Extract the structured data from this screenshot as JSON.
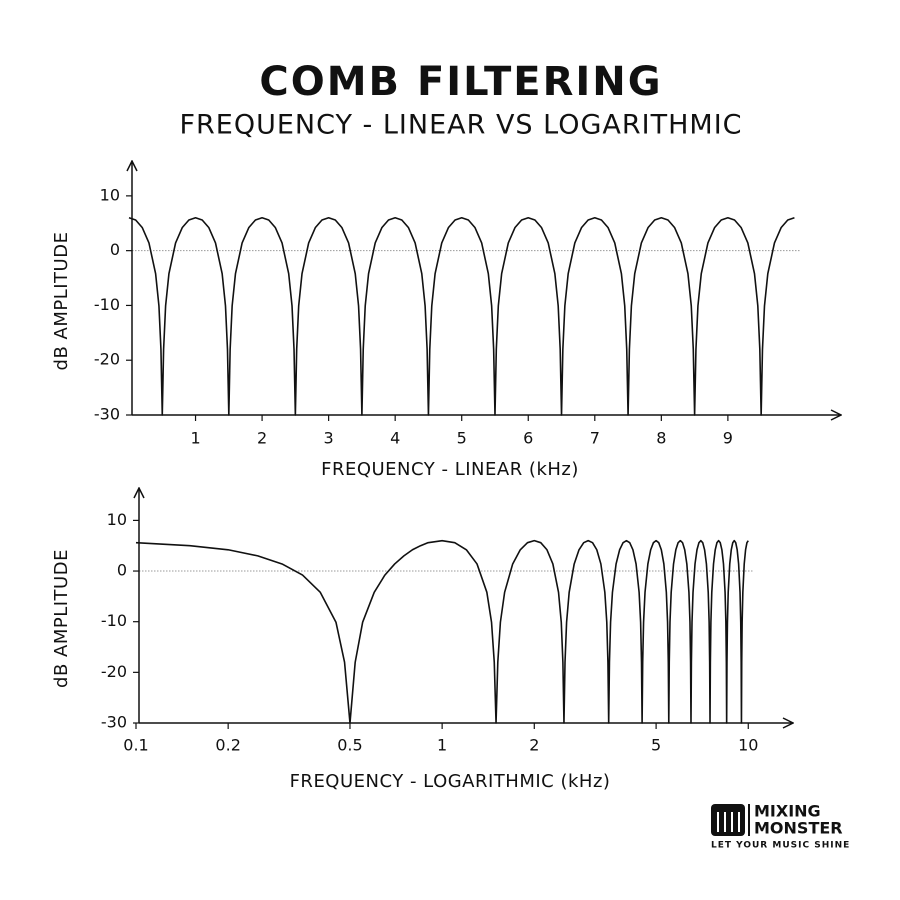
{
  "title": "COMB FILTERING",
  "subtitle": "FREQUENCY - LINEAR VS LOGARITHMIC",
  "chart_data": [
    {
      "type": "line",
      "ylabel": "dB AMPLITUDE",
      "xlabel": "FREQUENCY - LINEAR (kHz)",
      "color": "#111111",
      "xlim": [
        0,
        10.7
      ],
      "xticks": [
        1,
        2,
        3,
        4,
        5,
        6,
        7,
        8,
        9
      ],
      "ylim": [
        -30,
        16
      ],
      "yticks": [
        -30,
        -20,
        -10,
        0,
        10
      ],
      "hline": 0,
      "x": [
        0,
        0.1,
        0.2,
        0.3,
        0.4,
        0.45,
        0.48,
        0.5,
        0.52,
        0.55,
        0.6,
        0.7,
        0.8,
        0.9,
        1,
        1.1,
        1.2,
        1.3,
        1.4,
        1.45,
        1.48,
        1.5,
        1.52,
        1.55,
        1.6,
        1.7,
        1.8,
        1.9,
        2,
        2.1,
        2.2,
        2.3,
        2.4,
        2.45,
        2.48,
        2.5,
        2.52,
        2.55,
        2.6,
        2.7,
        2.8,
        2.9,
        3,
        3.1,
        3.2,
        3.3,
        3.4,
        3.45,
        3.48,
        3.5,
        3.52,
        3.55,
        3.6,
        3.7,
        3.8,
        3.9,
        4,
        4.1,
        4.2,
        4.3,
        4.4,
        4.45,
        4.48,
        4.5,
        4.52,
        4.55,
        4.6,
        4.7,
        4.8,
        4.9,
        5,
        5.1,
        5.2,
        5.3,
        5.4,
        5.45,
        5.48,
        5.5,
        5.52,
        5.55,
        5.6,
        5.7,
        5.8,
        5.9,
        6,
        6.1,
        6.2,
        6.3,
        6.4,
        6.45,
        6.48,
        6.5,
        6.52,
        6.55,
        6.6,
        6.7,
        6.8,
        6.9,
        7,
        7.1,
        7.2,
        7.3,
        7.4,
        7.45,
        7.48,
        7.5,
        7.52,
        7.55,
        7.6,
        7.7,
        7.8,
        7.9,
        8,
        8.1,
        8.2,
        8.3,
        8.4,
        8.45,
        8.48,
        8.5,
        8.52,
        8.55,
        8.6,
        8.7,
        8.8,
        8.9,
        9,
        9.1,
        9.2,
        9.3,
        9.4,
        9.45,
        9.48,
        9.5,
        9.52,
        9.55,
        9.6,
        9.7,
        9.8,
        9.9,
        10
      ],
      "values": [
        6,
        5.6,
        4.2,
        1.4,
        -4.2,
        -10.1,
        -18,
        -30,
        -18,
        -10.1,
        -4.2,
        1.4,
        4.2,
        5.6,
        6,
        5.6,
        4.2,
        1.4,
        -4.2,
        -10.1,
        -18,
        -30,
        -18,
        -10.1,
        -4.2,
        1.4,
        4.2,
        5.6,
        6,
        5.6,
        4.2,
        1.4,
        -4.2,
        -10.1,
        -18,
        -30,
        -18,
        -10.1,
        -4.2,
        1.4,
        4.2,
        5.6,
        6,
        5.6,
        4.2,
        1.4,
        -4.2,
        -10.1,
        -18,
        -30,
        -18,
        -10.1,
        -4.2,
        1.4,
        4.2,
        5.6,
        6,
        5.6,
        4.2,
        1.4,
        -4.2,
        -10.1,
        -18,
        -30,
        -18,
        -10.1,
        -4.2,
        1.4,
        4.2,
        5.6,
        6,
        5.6,
        4.2,
        1.4,
        -4.2,
        -10.1,
        -18,
        -30,
        -18,
        -10.1,
        -4.2,
        1.4,
        4.2,
        5.6,
        6,
        5.6,
        4.2,
        1.4,
        -4.2,
        -10.1,
        -18,
        -30,
        -18,
        -10.1,
        -4.2,
        1.4,
        4.2,
        5.6,
        6,
        5.6,
        4.2,
        1.4,
        -4.2,
        -10.1,
        -18,
        -30,
        -18,
        -10.1,
        -4.2,
        1.4,
        4.2,
        5.6,
        6,
        5.6,
        4.2,
        1.4,
        -4.2,
        -10.1,
        -18,
        -30,
        -18,
        -10.1,
        -4.2,
        1.4,
        4.2,
        5.6,
        6,
        5.6,
        4.2,
        1.4,
        -4.2,
        -10.1,
        -18,
        -30,
        -18,
        -10.1,
        -4.2,
        1.4,
        4.2,
        5.6,
        6
      ]
    },
    {
      "type": "line",
      "ylabel": "dB AMPLITUDE",
      "xlabel": "FREQUENCY - LOGARITHMIC (kHz)",
      "color": "#111111",
      "log_x": true,
      "xlim": [
        0.1,
        14
      ],
      "xticks": [
        0.1,
        0.2,
        0.5,
        1,
        2,
        5,
        10
      ],
      "ylim": [
        -30,
        16
      ],
      "yticks": [
        -30,
        -20,
        -10,
        0,
        10
      ],
      "hline": 0,
      "x": [
        0.1,
        0.15,
        0.2,
        0.25,
        0.3,
        0.35,
        0.4,
        0.45,
        0.48,
        0.5,
        0.52,
        0.55,
        0.6,
        0.65,
        0.7,
        0.75,
        0.8,
        0.85,
        0.9,
        1,
        1.1,
        1.2,
        1.3,
        1.4,
        1.45,
        1.48,
        1.5,
        1.52,
        1.55,
        1.6,
        1.7,
        1.8,
        1.9,
        2,
        2.1,
        2.2,
        2.3,
        2.4,
        2.45,
        2.48,
        2.5,
        2.52,
        2.55,
        2.6,
        2.7,
        2.8,
        2.9,
        3,
        3.1,
        3.2,
        3.3,
        3.4,
        3.45,
        3.48,
        3.5,
        3.52,
        3.55,
        3.6,
        3.7,
        3.8,
        3.9,
        4,
        4.1,
        4.2,
        4.3,
        4.4,
        4.45,
        4.48,
        4.5,
        4.52,
        4.55,
        4.6,
        4.7,
        4.8,
        4.9,
        5,
        5.1,
        5.2,
        5.3,
        5.4,
        5.45,
        5.48,
        5.5,
        5.52,
        5.55,
        5.6,
        5.7,
        5.8,
        5.9,
        6,
        6.1,
        6.2,
        6.3,
        6.4,
        6.45,
        6.48,
        6.5,
        6.52,
        6.55,
        6.6,
        6.7,
        6.8,
        6.9,
        7,
        7.1,
        7.2,
        7.3,
        7.4,
        7.45,
        7.48,
        7.5,
        7.52,
        7.55,
        7.6,
        7.7,
        7.8,
        7.9,
        8,
        8.1,
        8.2,
        8.3,
        8.4,
        8.45,
        8.48,
        8.5,
        8.52,
        8.55,
        8.6,
        8.7,
        8.8,
        8.9,
        9,
        9.1,
        9.2,
        9.3,
        9.4,
        9.45,
        9.48,
        9.5,
        9.52,
        9.55,
        9.6,
        9.7,
        9.8,
        9.9,
        10
      ],
      "values": [
        5.6,
        5,
        4.2,
        3,
        1.4,
        -0.8,
        -4.2,
        -10.1,
        -18,
        -30,
        -18,
        -10.1,
        -4.2,
        -0.8,
        1.4,
        3,
        4.2,
        5,
        5.6,
        6,
        5.6,
        4.2,
        1.4,
        -4.2,
        -10.1,
        -18,
        -30,
        -18,
        -10.1,
        -4.2,
        1.4,
        4.2,
        5.6,
        6,
        5.6,
        4.2,
        1.4,
        -4.2,
        -10.1,
        -18,
        -30,
        -18,
        -10.1,
        -4.2,
        1.4,
        4.2,
        5.6,
        6,
        5.6,
        4.2,
        1.4,
        -4.2,
        -10.1,
        -18,
        -30,
        -18,
        -10.1,
        -4.2,
        1.4,
        4.2,
        5.6,
        6,
        5.6,
        4.2,
        1.4,
        -4.2,
        -10.1,
        -18,
        -30,
        -18,
        -10.1,
        -4.2,
        1.4,
        4.2,
        5.6,
        6,
        5.6,
        4.2,
        1.4,
        -4.2,
        -10.1,
        -18,
        -30,
        -18,
        -10.1,
        -4.2,
        1.4,
        4.2,
        5.6,
        6,
        5.6,
        4.2,
        1.4,
        -4.2,
        -10.1,
        -18,
        -30,
        -18,
        -10.1,
        -4.2,
        1.4,
        4.2,
        5.6,
        6,
        5.6,
        4.2,
        1.4,
        -4.2,
        -10.1,
        -18,
        -30,
        -18,
        -10.1,
        -4.2,
        1.4,
        4.2,
        5.6,
        6,
        5.6,
        4.2,
        1.4,
        -4.2,
        -10.1,
        -18,
        -30,
        -18,
        -10.1,
        -4.2,
        1.4,
        4.2,
        5.6,
        6,
        5.6,
        4.2,
        1.4,
        -4.2,
        -10.1,
        -18,
        -30,
        -18,
        -10.1,
        -4.2,
        1.4,
        4.2,
        5.6,
        6
      ]
    }
  ],
  "logo": {
    "line1": "MIXING",
    "line2": "MONSTER",
    "tagline": "LET YOUR MUSIC SHINE"
  }
}
